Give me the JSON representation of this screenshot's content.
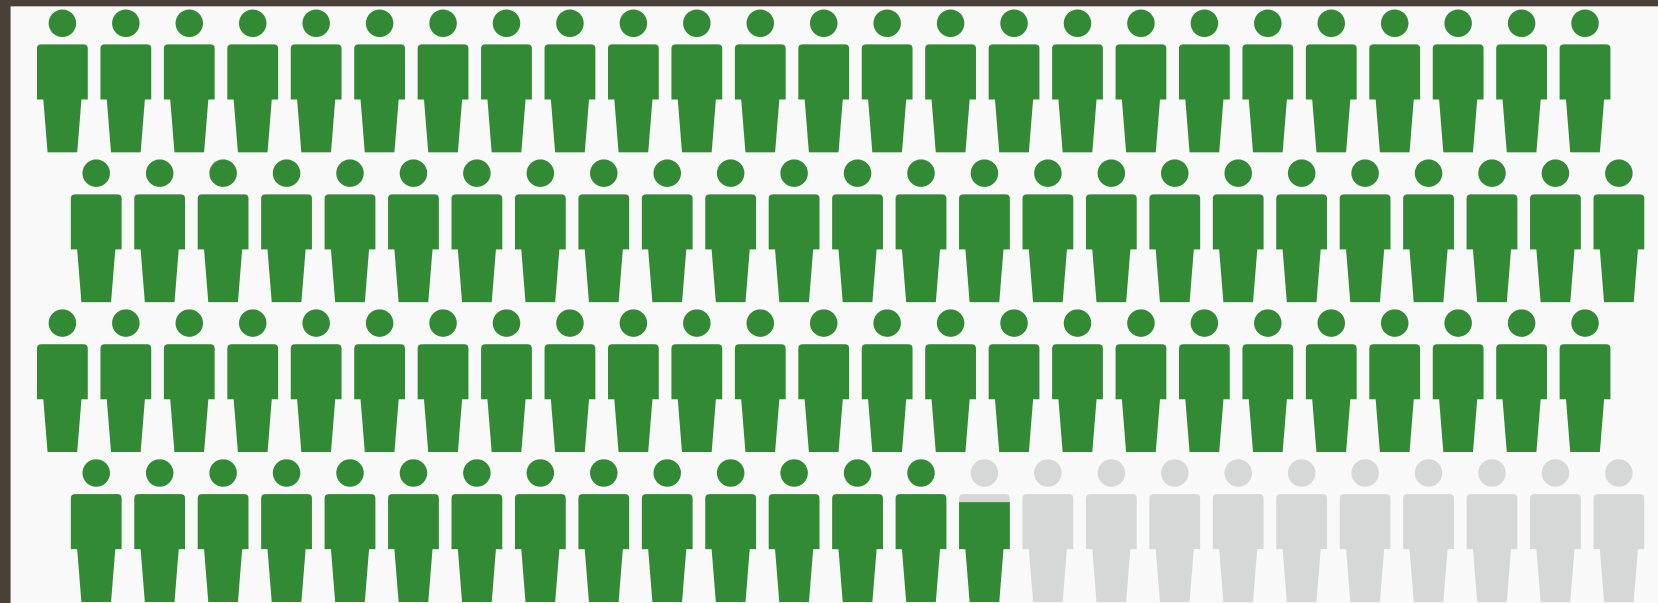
{
  "chart_data": {
    "type": "pictograph",
    "value": 89.7,
    "total": 100,
    "color": "#338a35",
    "empty_color": "#d6d8d7"
  }
}
